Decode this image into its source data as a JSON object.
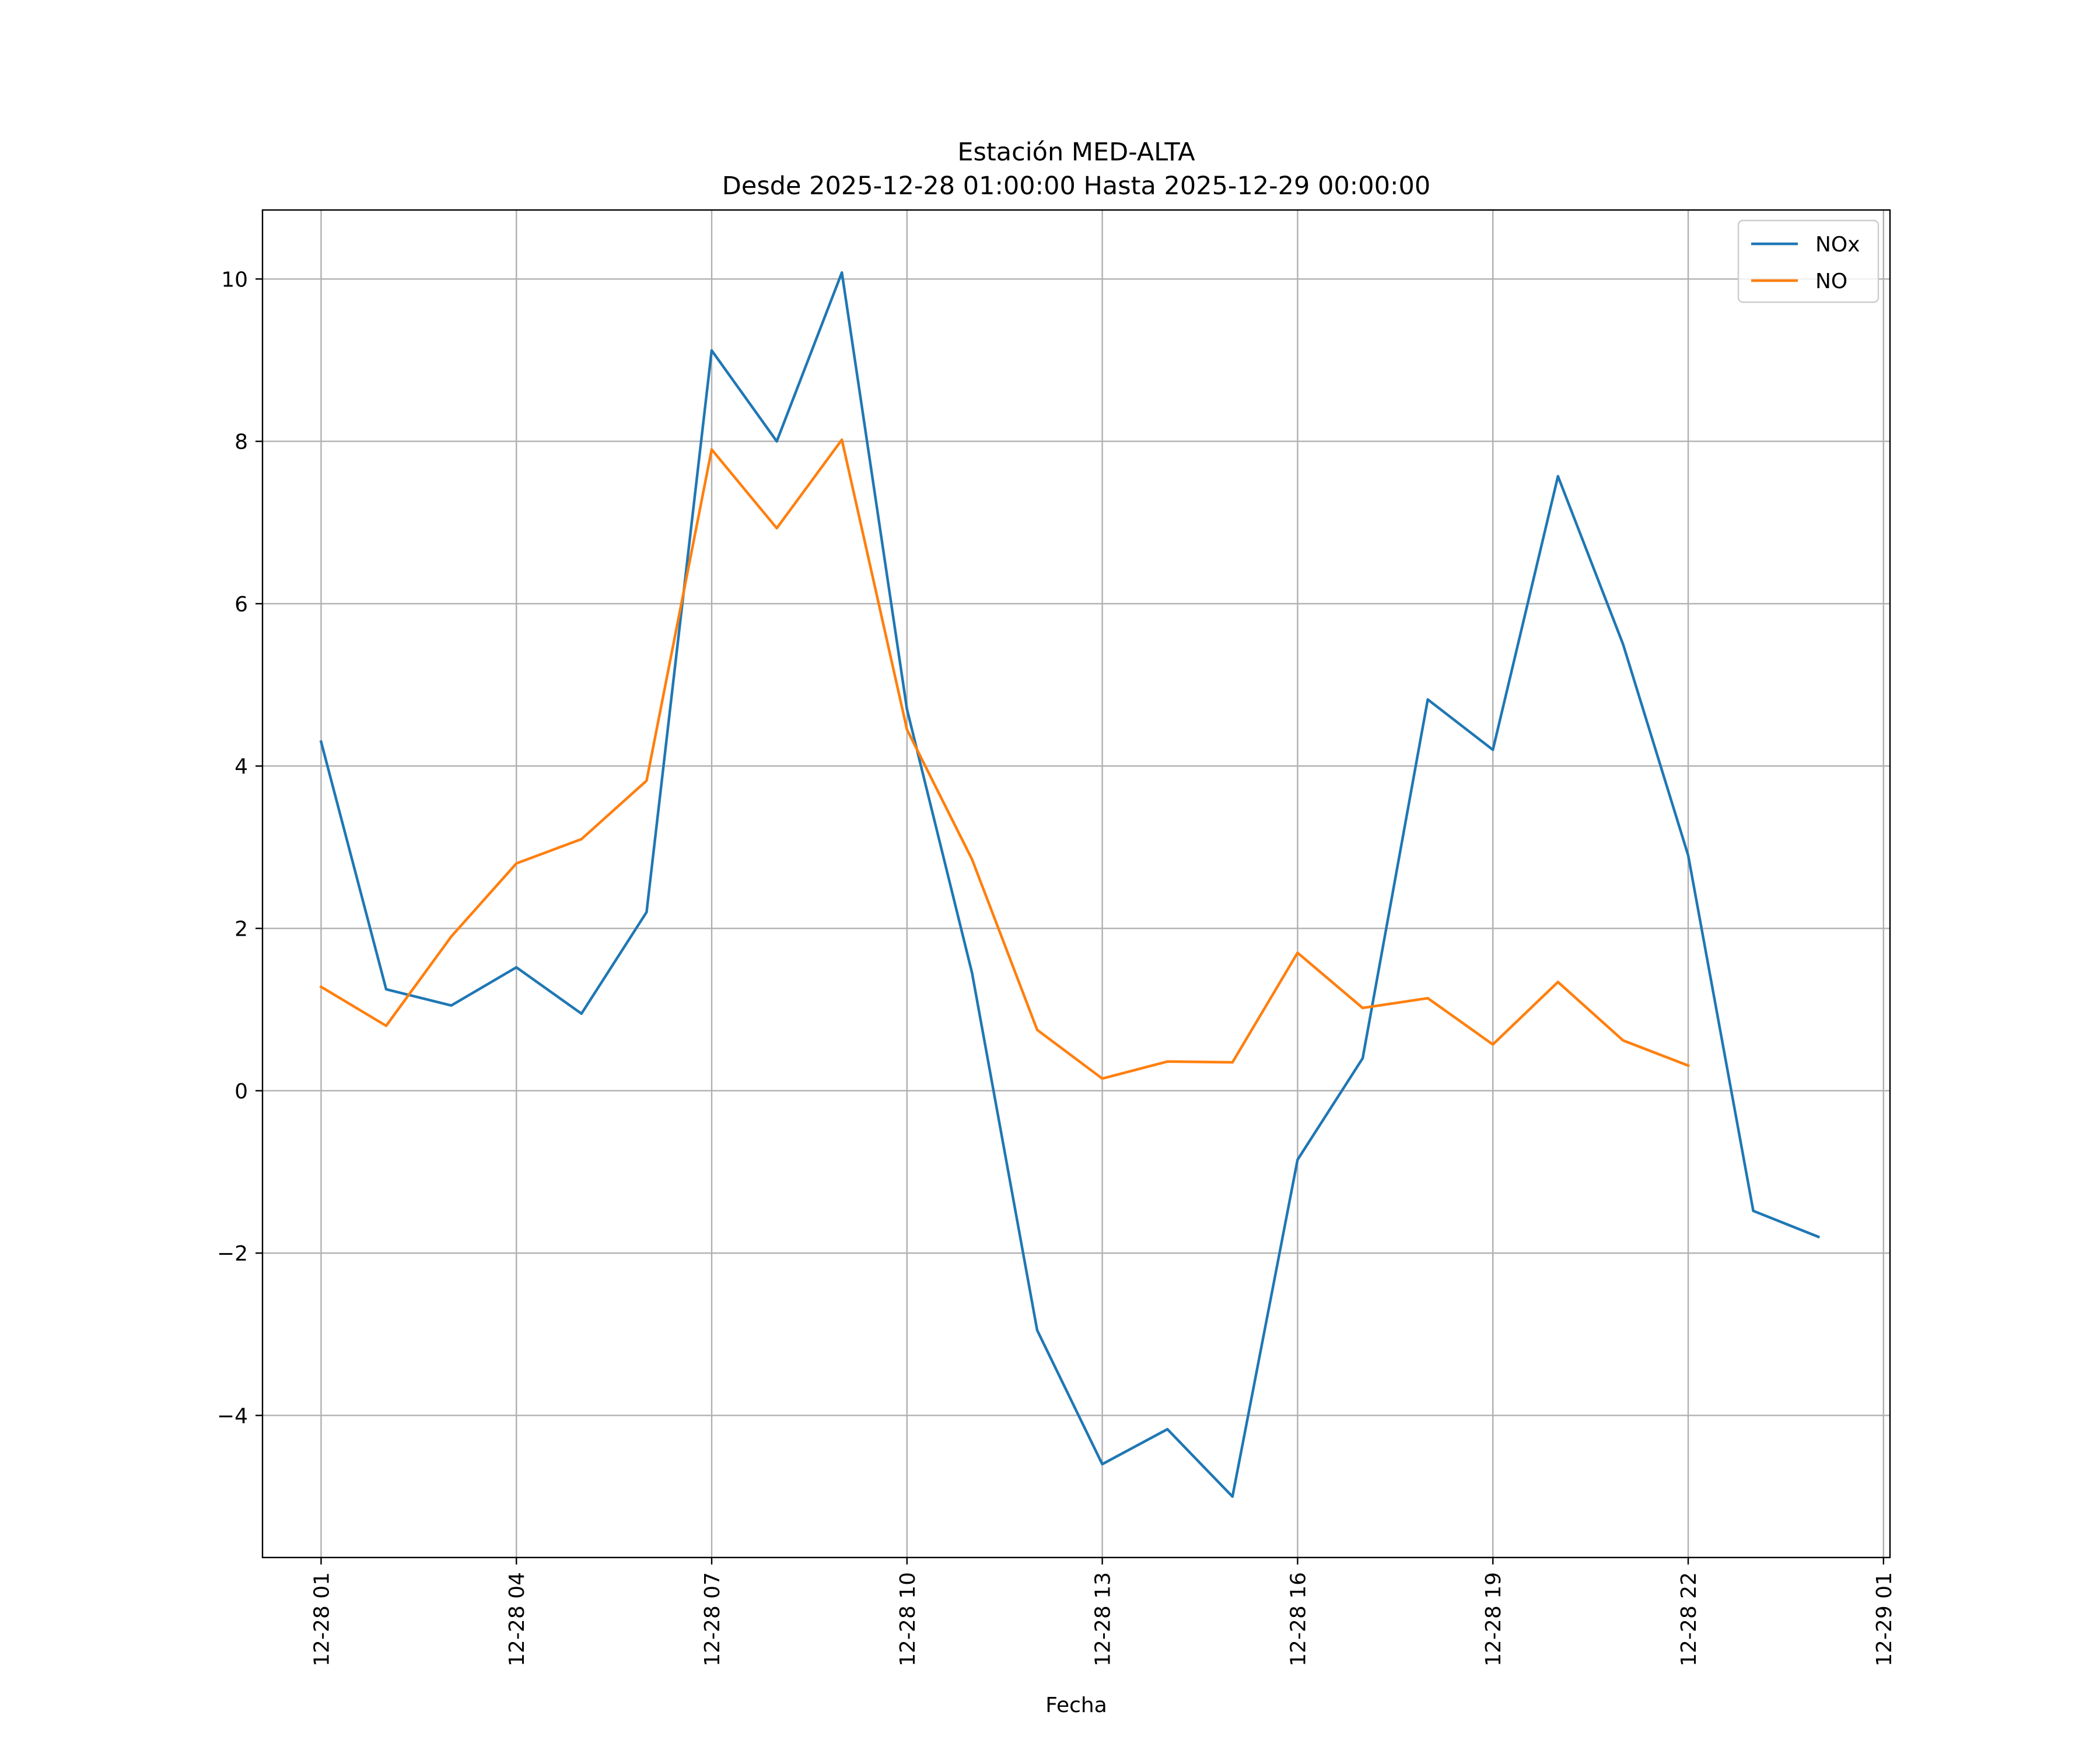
{
  "chart_data": {
    "type": "line",
    "title": "Estación MED-ALTA",
    "subtitle": "Desde 2025-12-28 01:00:00 Hasta 2025-12-29 00:00:00",
    "xlabel": "Fecha",
    "ylabel": "",
    "x_unit": "hour offset from 2025-12-28 01:00",
    "xlim": [
      -0.9,
      24.1
    ],
    "ylim": [
      -5.75,
      10.85
    ],
    "grid": true,
    "legend_position": "top-right",
    "x_ticks": [
      {
        "x": 0,
        "label": "12-28 01"
      },
      {
        "x": 3,
        "label": "12-28 04"
      },
      {
        "x": 6,
        "label": "12-28 07"
      },
      {
        "x": 9,
        "label": "12-28 10"
      },
      {
        "x": 12,
        "label": "12-28 13"
      },
      {
        "x": 15,
        "label": "12-28 16"
      },
      {
        "x": 18,
        "label": "12-28 19"
      },
      {
        "x": 21,
        "label": "12-28 22"
      },
      {
        "x": 24,
        "label": "12-29 01"
      }
    ],
    "y_ticks": [
      {
        "y": 10,
        "label": "10"
      },
      {
        "y": 8,
        "label": "8"
      },
      {
        "y": 6,
        "label": "6"
      },
      {
        "y": 4,
        "label": "4"
      },
      {
        "y": 2,
        "label": "2"
      },
      {
        "y": 0,
        "label": "0"
      },
      {
        "y": -2,
        "label": "−2"
      },
      {
        "y": -4,
        "label": "−4"
      }
    ],
    "series": [
      {
        "name": "NOx",
        "color": "#1f77b4",
        "x": [
          0,
          1,
          2,
          3,
          4,
          5,
          6,
          7,
          8,
          9,
          10,
          11,
          12,
          13,
          14,
          15,
          16,
          17,
          18,
          19,
          20,
          21,
          22,
          23
        ],
        "values": [
          4.3,
          1.25,
          1.05,
          1.52,
          0.95,
          2.2,
          9.12,
          8.0,
          10.08,
          4.7,
          1.45,
          -2.95,
          -4.6,
          -4.17,
          -5.0,
          -0.85,
          0.4,
          4.82,
          4.2,
          7.57,
          5.5,
          2.9,
          -1.48,
          -1.8
        ]
      },
      {
        "name": "NO",
        "color": "#ff7f0e",
        "x": [
          0,
          1,
          2,
          3,
          4,
          5,
          6,
          7,
          8,
          9,
          10,
          11,
          12,
          13,
          14,
          15,
          16,
          17,
          18,
          19,
          20,
          21
        ],
        "values": [
          1.28,
          0.8,
          1.9,
          2.8,
          3.1,
          3.82,
          7.9,
          6.93,
          8.02,
          4.45,
          2.85,
          0.75,
          0.15,
          0.36,
          0.35,
          1.7,
          1.02,
          1.14,
          0.57,
          1.34,
          0.62,
          0.31
        ]
      }
    ]
  }
}
